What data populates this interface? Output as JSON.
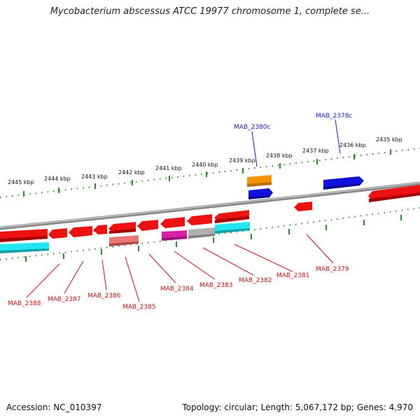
{
  "title": "Mycobacterium abscessus ATCC 19977 chromosome 1, complete se...",
  "footer": {
    "accession": "Accession: NC_010397",
    "stats": "Topology: circular; Length: 5,067,172 bp; Genes: 4,970"
  },
  "scale": {
    "tick_labels": [
      "2445 kbp",
      "2444 kbp",
      "2443 kbp",
      "2442 kbp",
      "2441 kbp",
      "2440 kbp",
      "2439 kbp",
      "2438 kbp",
      "2437 kbp",
      "2436 kbp",
      "2435 kbp"
    ]
  },
  "genes": {
    "forward_labels": [
      "MAB_2380c",
      "MAB_2378c"
    ],
    "reverse_labels": [
      "MAB_2388",
      "MAB_2387",
      "MAB_2386",
      "MAB_2385",
      "MAB_2384",
      "MAB_2383",
      "MAB_2382",
      "MAB_2381",
      "MAB_2379"
    ]
  },
  "colors": {
    "backbone": "#8a8a8a",
    "tick": "#2e8b2e",
    "gene_red": "#ee1111",
    "gene_blue": "#1111dd",
    "gene_orange": "#f29400",
    "gene_cyan": "#22e6f2",
    "gene_pink": "#e87878",
    "gene_magenta": "#d81faa",
    "gene_gray": "#b0b0b0",
    "label_blue": "#1a1acc",
    "label_red": "#cc1111"
  }
}
